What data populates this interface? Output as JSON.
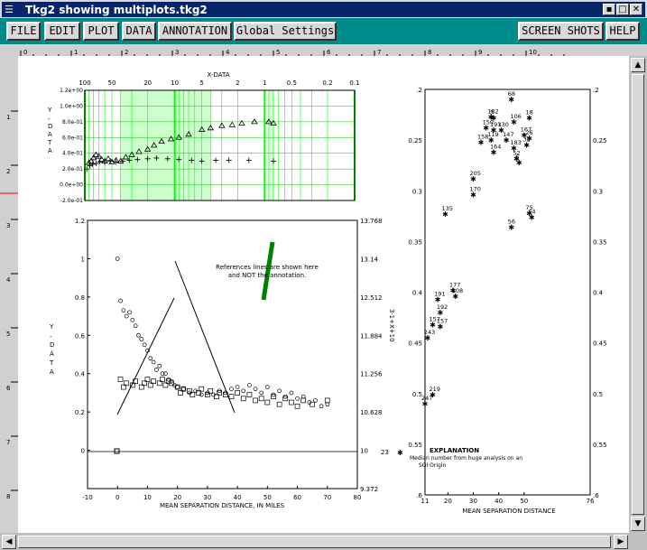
{
  "window": {
    "title": "Tkg2 showing multiplots.tkg2"
  },
  "menu": {
    "file": "FILE",
    "edit": "EDIT",
    "plot": "PLOT",
    "data": "DATA",
    "annotation": "ANNOTATION",
    "global": "Global Settings",
    "screenshots": "SCREEN SHOTS",
    "help": "HELP"
  },
  "ruler": {
    "top_ticks": [
      "0",
      "1",
      "2",
      "3",
      "4",
      "5",
      "6",
      "7",
      "8",
      "9",
      "10"
    ],
    "left_ticks": [
      "1",
      "2",
      "3",
      "4",
      "5",
      "6",
      "7",
      "8"
    ]
  },
  "colors": {
    "title_bg": "#08246b",
    "menu_bg": "#008b8b",
    "grid_green": "#00ff00",
    "line_green": "#008000"
  },
  "plot1": {
    "xlabel_top": "X-DATA",
    "ylabel": "Y-DATA",
    "x_ticks": [
      "100",
      "50",
      "20",
      "10",
      "5",
      "2",
      "1",
      "0.5",
      "0.2",
      "0.1"
    ],
    "y_ticks": [
      "1.2e+00",
      "1.0e+00",
      "8.0e-01",
      "6.0e-01",
      "4.0e-01",
      "2.0e-01",
      "0.0e+00",
      "-2.0e-01"
    ]
  },
  "plot2": {
    "xlabel": "MEAN SEPARATION DISTANCE, IN MILES",
    "ylabel": "Y-DATA",
    "right_label": "3·1+X+10",
    "x_ticks": [
      "-10",
      "0",
      "10",
      "20",
      "30",
      "40",
      "50",
      "60",
      "70",
      "80"
    ],
    "y_ticks": [
      "1.2",
      "1",
      "0.8",
      "0.6",
      "0.4",
      "0.2",
      "0"
    ],
    "y2_ticks": [
      "13.768",
      "13.14",
      "12.512",
      "11.884",
      "11.256",
      "10.628",
      "10",
      "9.372"
    ],
    "annotation": [
      "References lines are shown here",
      "and NOT the annotation."
    ]
  },
  "plot3": {
    "xlabel": "MEAN SEPARATION DISTANCE",
    "x_ticks": [
      "11",
      "20",
      "30",
      "40",
      "50",
      "76"
    ],
    "y_ticks": [
      ".2",
      "0.25",
      "0.3",
      "0.35",
      "0.4",
      "0.45",
      "0.5",
      "0.55",
      ".6"
    ],
    "legend_title": "EXPLANATION",
    "legend_number": "23",
    "legend_text": [
      "Median number from huge analysis on an",
      "SGI Origin"
    ],
    "points": [
      {
        "x": 45,
        "y": 0.21,
        "l": "68"
      },
      {
        "x": 37,
        "y": 0.227,
        "l": "182"
      },
      {
        "x": 38,
        "y": 0.228,
        "l": "5"
      },
      {
        "x": 46,
        "y": 0.232,
        "l": "106"
      },
      {
        "x": 52,
        "y": 0.228,
        "l": "18"
      },
      {
        "x": 35,
        "y": 0.238,
        "l": "150"
      },
      {
        "x": 38,
        "y": 0.24,
        "l": "193"
      },
      {
        "x": 41,
        "y": 0.24,
        "l": "130"
      },
      {
        "x": 50,
        "y": 0.245,
        "l": "167"
      },
      {
        "x": 33,
        "y": 0.252,
        "l": "158"
      },
      {
        "x": 37,
        "y": 0.25,
        "l": "119"
      },
      {
        "x": 43,
        "y": 0.25,
        "l": "147"
      },
      {
        "x": 52,
        "y": 0.248,
        "l": "26"
      },
      {
        "x": 38,
        "y": 0.262,
        "l": "164"
      },
      {
        "x": 46,
        "y": 0.258,
        "l": "183"
      },
      {
        "x": 47,
        "y": 0.268,
        "l": "52"
      },
      {
        "x": 51,
        "y": 0.255,
        "l": "32"
      },
      {
        "x": 48,
        "y": 0.272,
        "l": "6"
      },
      {
        "x": 30,
        "y": 0.288,
        "l": "205"
      },
      {
        "x": 30,
        "y": 0.304,
        "l": "170"
      },
      {
        "x": 19,
        "y": 0.323,
        "l": "135"
      },
      {
        "x": 52,
        "y": 0.322,
        "l": "75"
      },
      {
        "x": 53,
        "y": 0.326,
        "l": "24"
      },
      {
        "x": 45,
        "y": 0.336,
        "l": "56"
      },
      {
        "x": 22,
        "y": 0.398,
        "l": "177"
      },
      {
        "x": 23,
        "y": 0.404,
        "l": "108"
      },
      {
        "x": 16,
        "y": 0.407,
        "l": "191"
      },
      {
        "x": 17,
        "y": 0.42,
        "l": "192"
      },
      {
        "x": 14,
        "y": 0.432,
        "l": "157"
      },
      {
        "x": 17,
        "y": 0.434,
        "l": "157"
      },
      {
        "x": 12,
        "y": 0.445,
        "l": "243"
      },
      {
        "x": 14,
        "y": 0.501,
        "l": "219"
      },
      {
        "x": 11,
        "y": 0.51,
        "l": "247"
      }
    ]
  }
}
